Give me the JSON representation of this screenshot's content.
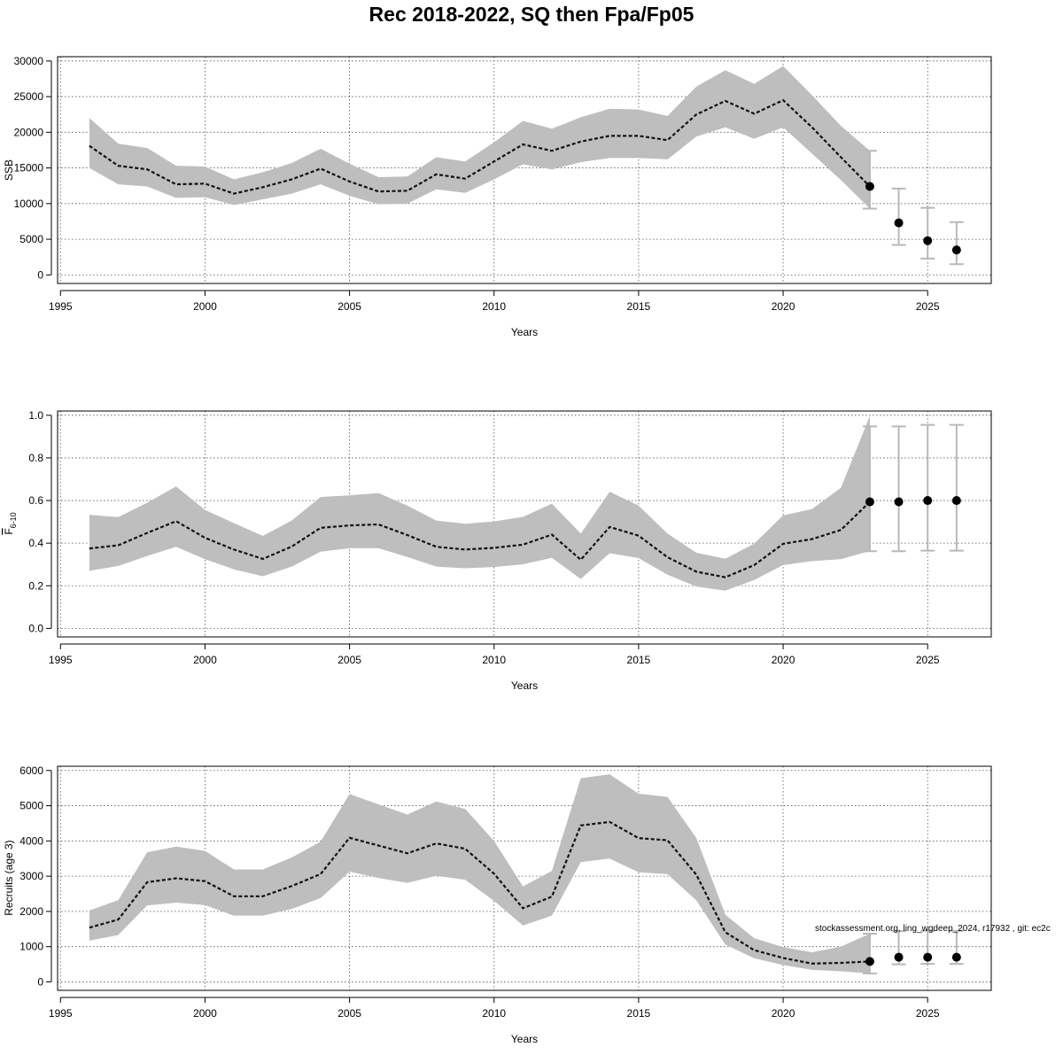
{
  "figure": {
    "title": "Rec 2018-2022, SQ then Fpa/Fp05",
    "footer": "stockassessment.org, ling_wgdeep_2024, r17932 , git: ec2c"
  },
  "colors": {
    "band": "#bebebe",
    "line": "#111111",
    "errorbar": "#b8b8b8",
    "point": "#000000"
  },
  "chart_data": [
    {
      "type": "line",
      "name": "ssb",
      "xlabel": "Years",
      "ylabel": "SSB",
      "xlim": [
        1994.9,
        2027.2
      ],
      "ylim": [
        -1200,
        30600
      ],
      "xticks": [
        1995,
        2000,
        2005,
        2010,
        2015,
        2020,
        2025
      ],
      "yticks": [
        0,
        5000,
        10000,
        15000,
        20000,
        25000,
        30000
      ],
      "grid": true,
      "estimate": {
        "years": [
          1996,
          1997,
          1998,
          1999,
          2000,
          2001,
          2002,
          2003,
          2004,
          2005,
          2006,
          2007,
          2008,
          2009,
          2010,
          2011,
          2012,
          2013,
          2014,
          2015,
          2016,
          2017,
          2018,
          2019,
          2020,
          2021,
          2022,
          2023
        ],
        "median": [
          18100,
          15300,
          14800,
          12700,
          12800,
          11400,
          12300,
          13400,
          14900,
          13100,
          11700,
          11800,
          14100,
          13500,
          15900,
          18300,
          17400,
          18700,
          19500,
          19500,
          18900,
          22500,
          24400,
          22600,
          24500,
          20700,
          16500,
          12400
        ],
        "lower": [
          15000,
          12700,
          12400,
          10800,
          10900,
          9800,
          10600,
          11400,
          12700,
          11100,
          9900,
          10000,
          12000,
          11500,
          13400,
          15500,
          14800,
          15800,
          16400,
          16400,
          16200,
          19400,
          20700,
          19100,
          20700,
          17000,
          13300,
          9300
        ],
        "upper": [
          22000,
          18400,
          17800,
          15300,
          15200,
          13400,
          14400,
          15700,
          17700,
          15600,
          13700,
          13800,
          16500,
          15900,
          18600,
          21600,
          20500,
          22100,
          23300,
          23200,
          22300,
          26400,
          28700,
          26800,
          29300,
          25200,
          20900,
          17400
        ]
      },
      "forecast": {
        "years": [
          2023,
          2024,
          2025,
          2026
        ],
        "median": [
          12400,
          7300,
          4800,
          3500
        ],
        "lower": [
          9300,
          4200,
          2300,
          1500
        ],
        "upper": [
          17400,
          12100,
          9400,
          7400
        ]
      }
    },
    {
      "type": "line",
      "name": "fbar",
      "xlabel": "Years",
      "ylabel": "F",
      "ylabel_subscript": "6-10",
      "xlim": [
        1994.9,
        2027.2
      ],
      "ylim": [
        -0.04,
        1.02
      ],
      "xticks": [
        1995,
        2000,
        2005,
        2010,
        2015,
        2020,
        2025
      ],
      "yticks": [
        0.0,
        0.2,
        0.4,
        0.6,
        0.8,
        1.0
      ],
      "ytick_labels": [
        "0.0",
        "0.2",
        "0.4",
        "0.6",
        "0.8",
        "1.0"
      ],
      "grid": true,
      "estimate": {
        "years": [
          1996,
          1997,
          1998,
          1999,
          2000,
          2001,
          2002,
          2003,
          2004,
          2005,
          2006,
          2007,
          2008,
          2009,
          2010,
          2011,
          2012,
          2013,
          2014,
          2015,
          2016,
          2017,
          2018,
          2019,
          2020,
          2021,
          2022,
          2023
        ],
        "median": [
          0.375,
          0.39,
          0.448,
          0.503,
          0.425,
          0.37,
          0.326,
          0.384,
          0.472,
          0.483,
          0.488,
          0.438,
          0.383,
          0.37,
          0.378,
          0.393,
          0.44,
          0.322,
          0.476,
          0.435,
          0.334,
          0.266,
          0.24,
          0.297,
          0.397,
          0.419,
          0.462,
          0.594
        ],
        "lower": [
          0.27,
          0.293,
          0.34,
          0.383,
          0.325,
          0.277,
          0.245,
          0.29,
          0.36,
          0.376,
          0.376,
          0.335,
          0.29,
          0.282,
          0.288,
          0.301,
          0.331,
          0.232,
          0.353,
          0.33,
          0.252,
          0.196,
          0.177,
          0.227,
          0.297,
          0.316,
          0.325,
          0.363
        ],
        "upper": [
          0.533,
          0.522,
          0.59,
          0.666,
          0.556,
          0.494,
          0.434,
          0.506,
          0.617,
          0.624,
          0.635,
          0.576,
          0.506,
          0.491,
          0.502,
          0.523,
          0.585,
          0.445,
          0.641,
          0.576,
          0.445,
          0.355,
          0.327,
          0.398,
          0.53,
          0.56,
          0.66,
          0.997
        ]
      },
      "forecast": {
        "years": [
          2023,
          2024,
          2025,
          2026
        ],
        "median": [
          0.594,
          0.594,
          0.6,
          0.6
        ],
        "lower": [
          0.362,
          0.362,
          0.365,
          0.365
        ],
        "upper": [
          0.948,
          0.948,
          0.955,
          0.955
        ]
      }
    },
    {
      "type": "line",
      "name": "recruits",
      "xlabel": "Years",
      "ylabel": "Recruits (age 3)",
      "xlim": [
        1994.9,
        2027.2
      ],
      "ylim": [
        -240,
        6120
      ],
      "xticks": [
        1995,
        2000,
        2005,
        2010,
        2015,
        2020,
        2025
      ],
      "yticks": [
        0,
        1000,
        2000,
        3000,
        4000,
        5000,
        6000
      ],
      "grid": true,
      "estimate": {
        "years": [
          1996,
          1997,
          1998,
          1999,
          2000,
          2001,
          2002,
          2003,
          2004,
          2005,
          2006,
          2007,
          2008,
          2009,
          2010,
          2011,
          2012,
          2013,
          2014,
          2015,
          2016,
          2017,
          2018,
          2019,
          2020,
          2021,
          2022,
          2023
        ],
        "median": [
          1540,
          1770,
          2830,
          2940,
          2860,
          2430,
          2430,
          2720,
          3060,
          4090,
          3870,
          3650,
          3930,
          3780,
          3070,
          2090,
          2420,
          4440,
          4540,
          4080,
          4020,
          3040,
          1410,
          900,
          680,
          520,
          540,
          580
        ],
        "lower": [
          1170,
          1330,
          2170,
          2250,
          2180,
          1880,
          1880,
          2070,
          2380,
          3130,
          2950,
          2810,
          3010,
          2900,
          2300,
          1600,
          1880,
          3400,
          3500,
          3110,
          3060,
          2310,
          1060,
          670,
          480,
          340,
          300,
          240
        ],
        "upper": [
          2030,
          2320,
          3680,
          3840,
          3720,
          3190,
          3190,
          3530,
          3980,
          5330,
          5040,
          4750,
          5120,
          4910,
          4000,
          2710,
          3150,
          5780,
          5890,
          5340,
          5250,
          4080,
          1910,
          1240,
          990,
          840,
          1000,
          1370
        ]
      },
      "forecast": {
        "years": [
          2023,
          2024,
          2025,
          2026
        ],
        "median": [
          580,
          700,
          700,
          700
        ],
        "lower": [
          240,
          500,
          510,
          510
        ],
        "upper": [
          1370,
          1440,
          1450,
          1450
        ]
      }
    }
  ]
}
